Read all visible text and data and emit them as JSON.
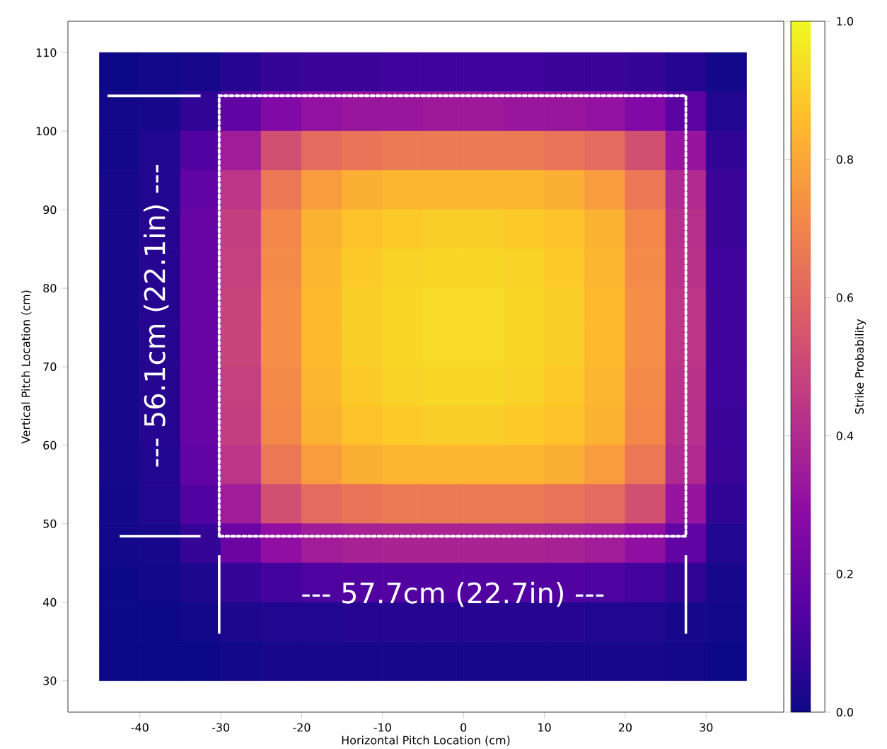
{
  "chart_data": {
    "type": "heatmap",
    "xlabel": "Horizontal Pitch Location (cm)",
    "ylabel": "Vertical Pitch Location (cm)",
    "clabel": "Strike Probability",
    "x": [
      -42.5,
      -37.5,
      -32.5,
      -27.5,
      -22.5,
      -17.5,
      -12.5,
      -7.5,
      -2.5,
      2.5,
      7.5,
      12.5,
      17.5,
      22.5,
      27.5,
      32.5
    ],
    "y": [
      107.5,
      102.5,
      97.5,
      92.5,
      87.5,
      82.5,
      77.5,
      72.5,
      67.5,
      62.5,
      57.5,
      52.5,
      47.5,
      42.5,
      37.5,
      32.5
    ],
    "xlim": [
      -48.9,
      39.6
    ],
    "ylim": [
      26,
      114
    ],
    "xticks": [
      -40,
      -30,
      -20,
      -10,
      0,
      10,
      20,
      30
    ],
    "yticks": [
      30,
      40,
      50,
      60,
      70,
      80,
      90,
      100,
      110
    ],
    "clim": [
      0,
      1
    ],
    "cticks": [
      {
        "value": 0,
        "label": "0.0"
      },
      {
        "value": 0.2,
        "label": "0.2"
      },
      {
        "value": 0.4,
        "label": "0.4"
      },
      {
        "value": 0.6,
        "label": "0.6"
      },
      {
        "value": 0.8,
        "label": "0.8"
      },
      {
        "value": 1,
        "label": "1.0"
      }
    ],
    "cells": [
      [
        0.0,
        0.01,
        0.02,
        0.05,
        0.08,
        0.09,
        0.09,
        0.1,
        0.1,
        0.1,
        0.1,
        0.09,
        0.09,
        0.08,
        0.05,
        0.01
      ],
      [
        0.01,
        0.02,
        0.07,
        0.18,
        0.26,
        0.31,
        0.33,
        0.33,
        0.34,
        0.34,
        0.33,
        0.33,
        0.31,
        0.26,
        0.16,
        0.04
      ],
      [
        0.01,
        0.04,
        0.14,
        0.35,
        0.53,
        0.62,
        0.65,
        0.67,
        0.67,
        0.67,
        0.67,
        0.65,
        0.62,
        0.53,
        0.32,
        0.07
      ],
      [
        0.02,
        0.04,
        0.18,
        0.44,
        0.66,
        0.77,
        0.82,
        0.84,
        0.84,
        0.84,
        0.84,
        0.82,
        0.77,
        0.66,
        0.4,
        0.09
      ],
      [
        0.02,
        0.05,
        0.19,
        0.47,
        0.71,
        0.83,
        0.87,
        0.89,
        0.9,
        0.9,
        0.89,
        0.87,
        0.83,
        0.71,
        0.42,
        0.09
      ],
      [
        0.02,
        0.05,
        0.19,
        0.48,
        0.72,
        0.84,
        0.89,
        0.91,
        0.92,
        0.92,
        0.91,
        0.89,
        0.84,
        0.72,
        0.43,
        0.1
      ],
      [
        0.02,
        0.05,
        0.19,
        0.49,
        0.73,
        0.85,
        0.9,
        0.92,
        0.93,
        0.93,
        0.92,
        0.9,
        0.85,
        0.73,
        0.44,
        0.1
      ],
      [
        0.02,
        0.05,
        0.19,
        0.49,
        0.73,
        0.85,
        0.9,
        0.92,
        0.93,
        0.93,
        0.92,
        0.9,
        0.85,
        0.73,
        0.44,
        0.1
      ],
      [
        0.02,
        0.05,
        0.19,
        0.48,
        0.72,
        0.84,
        0.89,
        0.91,
        0.92,
        0.92,
        0.91,
        0.89,
        0.84,
        0.72,
        0.43,
        0.1
      ],
      [
        0.02,
        0.05,
        0.19,
        0.47,
        0.71,
        0.83,
        0.87,
        0.89,
        0.9,
        0.9,
        0.89,
        0.87,
        0.83,
        0.71,
        0.42,
        0.09
      ],
      [
        0.02,
        0.04,
        0.18,
        0.44,
        0.66,
        0.77,
        0.82,
        0.84,
        0.84,
        0.84,
        0.84,
        0.82,
        0.77,
        0.66,
        0.4,
        0.09
      ],
      [
        0.01,
        0.04,
        0.14,
        0.35,
        0.53,
        0.62,
        0.65,
        0.67,
        0.67,
        0.67,
        0.67,
        0.65,
        0.62,
        0.53,
        0.32,
        0.07
      ],
      [
        0.01,
        0.02,
        0.08,
        0.2,
        0.3,
        0.35,
        0.37,
        0.38,
        0.38,
        0.38,
        0.38,
        0.37,
        0.35,
        0.3,
        0.18,
        0.04
      ],
      [
        0.0,
        0.01,
        0.03,
        0.08,
        0.11,
        0.13,
        0.14,
        0.14,
        0.14,
        0.14,
        0.14,
        0.14,
        0.13,
        0.11,
        0.07,
        0.02
      ],
      [
        0.0,
        0.0,
        0.01,
        0.03,
        0.04,
        0.04,
        0.05,
        0.05,
        0.05,
        0.05,
        0.05,
        0.05,
        0.04,
        0.04,
        0.02,
        0.01
      ],
      [
        0.0,
        0.0,
        0.0,
        0.01,
        0.02,
        0.02,
        0.02,
        0.02,
        0.02,
        0.02,
        0.02,
        0.02,
        0.02,
        0.02,
        0.01,
        0.0
      ]
    ],
    "ref_lines": [
      {
        "axis": "x",
        "value": -30.2,
        "color": "#ffffff"
      },
      {
        "axis": "x",
        "value": 27.5,
        "color": "#ffffff"
      },
      {
        "axis": "y",
        "value": 48.4,
        "color": "#ffffff"
      },
      {
        "axis": "y",
        "value": 104.5,
        "color": "#ffffff"
      }
    ],
    "annotations": [
      "--- 57.7cm (22.7in) ---",
      "--- 56.1cm (22.1in) ---"
    ]
  }
}
